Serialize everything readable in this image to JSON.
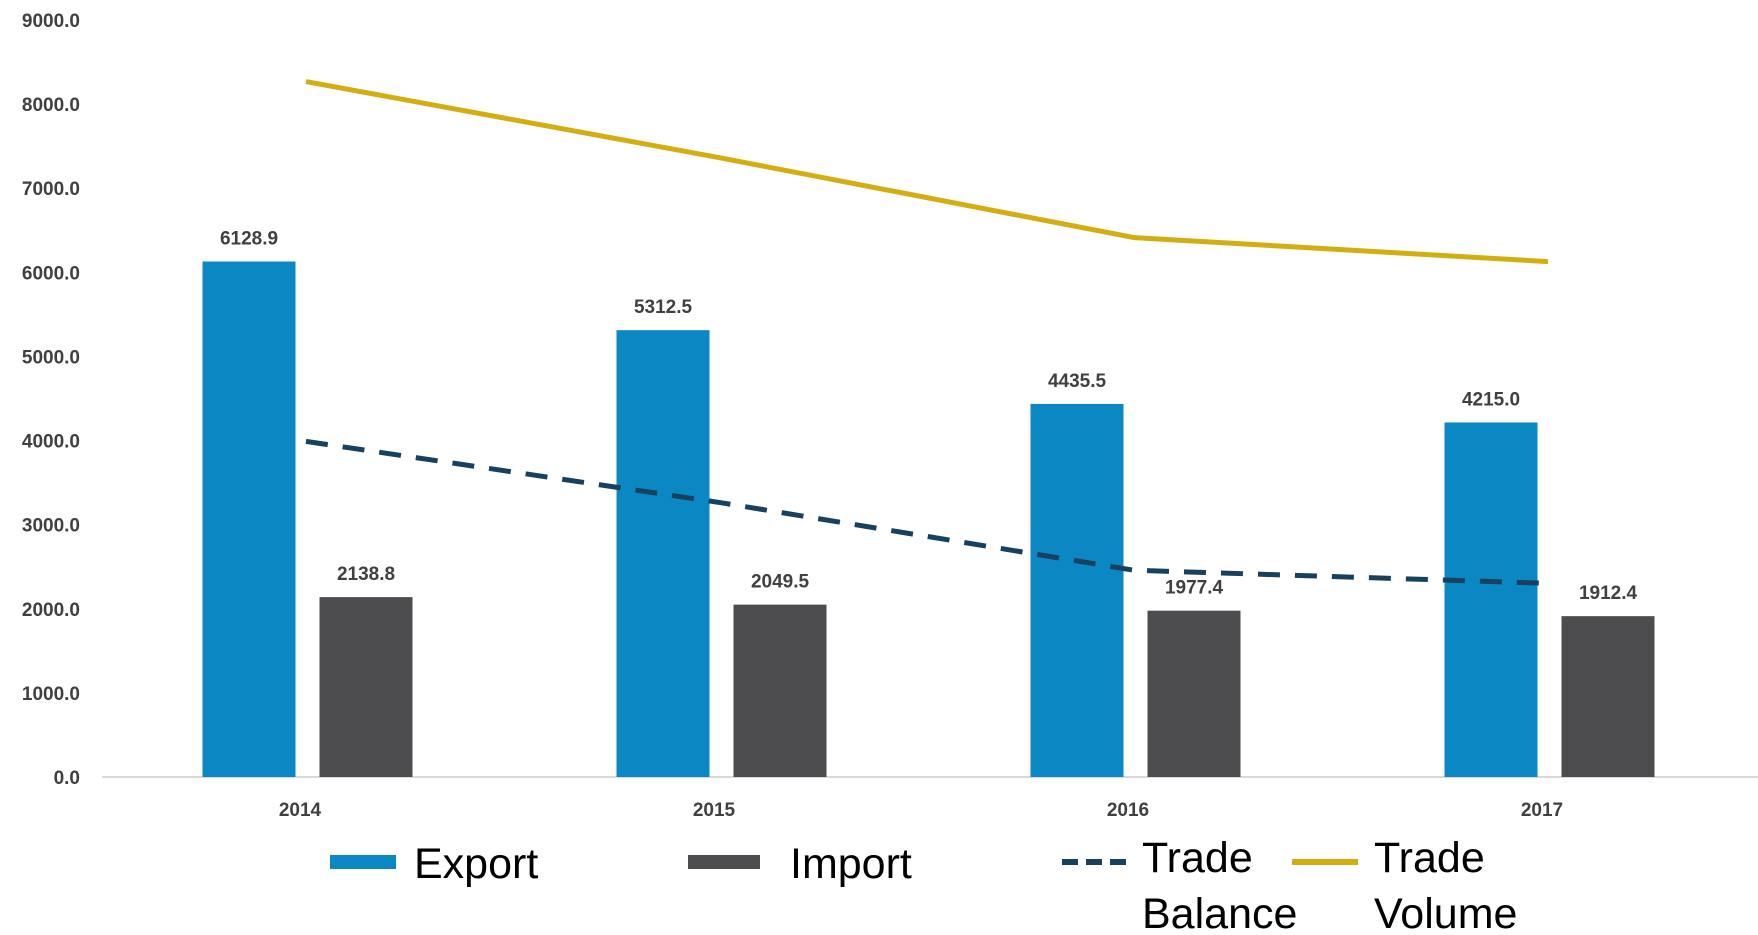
{
  "chart_data": {
    "type": "bar",
    "categories": [
      "2014",
      "2015",
      "2016",
      "2017"
    ],
    "series": [
      {
        "name": "Export",
        "kind": "bar",
        "color": "#0B87C3",
        "values": [
          6128.9,
          5312.5,
          4435.5,
          4215.0
        ],
        "labels": [
          "6128.9",
          "5312.5",
          "4435.5",
          "4215.0"
        ]
      },
      {
        "name": "Import",
        "kind": "bar",
        "color": "#4D4D4F",
        "values": [
          2138.8,
          2049.5,
          1977.4,
          1912.4
        ],
        "labels": [
          "2138.8",
          "2049.5",
          "1977.4",
          "1912.4"
        ]
      },
      {
        "name": "Trade Balance",
        "kind": "line",
        "style": "dashed",
        "color": "#17415F",
        "values": [
          3990.1,
          3263.0,
          2458.1,
          2302.6
        ]
      },
      {
        "name": "Trade Volume",
        "kind": "line",
        "style": "solid",
        "color": "#D4AE10",
        "values": [
          8267.7,
          7362.0,
          6413.0,
          6127.4
        ]
      }
    ],
    "yticks": [
      "0.0",
      "1000.0",
      "2000.0",
      "3000.0",
      "4000.0",
      "5000.0",
      "6000.0",
      "7000.0",
      "8000.0",
      "9000.0"
    ],
    "ylim": [
      0,
      9000
    ],
    "grid": false,
    "legend_position": "bottom",
    "title": "",
    "xlabel": "",
    "ylabel": ""
  }
}
